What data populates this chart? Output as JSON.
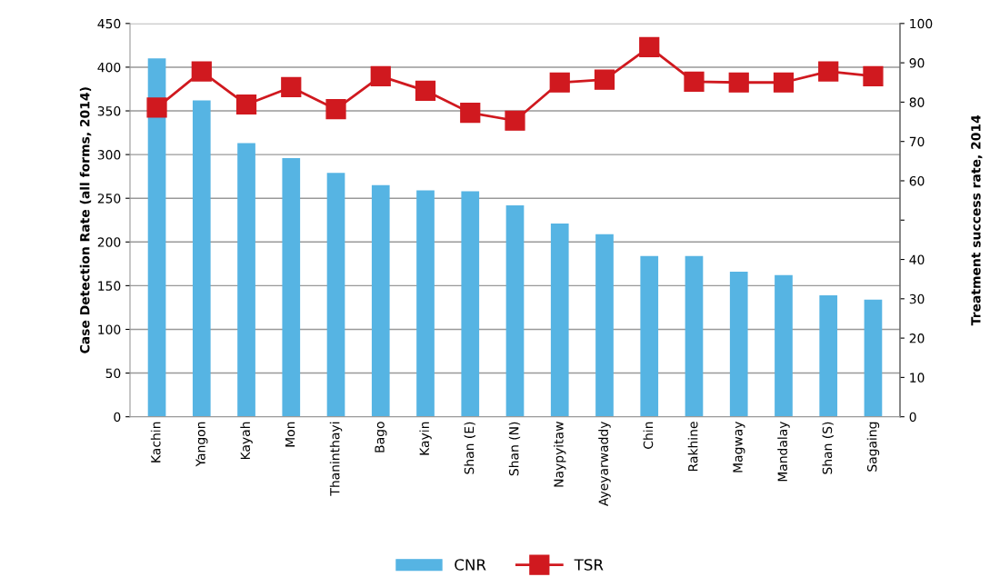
{
  "chart_data": {
    "type": "bar",
    "ylabel": "Case Detection Rate (all forms, 2014)",
    "y2label": "Treatment success rate, 2014",
    "categories": [
      "Kachin",
      "Yangon",
      "Kayah",
      "Mon",
      "Thaninthayi",
      "Bago",
      "Kayin",
      "Shan (E)",
      "Shan (N)",
      "Naypyitaw",
      "Ayeyarwaddy",
      "Chin",
      "Rakhine",
      "Magway",
      "Mandalay",
      "Shan (S)",
      "Sagaing"
    ],
    "series": [
      {
        "name": "CNR",
        "color": "#56b4e3",
        "values": [
          410,
          362,
          313,
          296,
          279,
          265,
          259,
          258,
          242,
          221,
          209,
          184,
          184,
          166,
          162,
          139,
          134
        ]
      },
      {
        "name": "TSR",
        "type": "line",
        "axis": "y2",
        "color": "#d0191f",
        "marker": "square",
        "values": [
          78.6,
          87.8,
          79.4,
          83.8,
          78.2,
          86.6,
          82.9,
          77.3,
          75.3,
          85.0,
          85.7,
          94.0,
          85.2,
          85.0,
          85.0,
          87.8,
          86.6
        ]
      }
    ],
    "ylim": [
      0,
      450
    ],
    "yticks": [
      0,
      50,
      100,
      150,
      200,
      250,
      300,
      350,
      400,
      450
    ],
    "y2lim": [
      0,
      100
    ],
    "y2ticks": [
      0,
      10,
      20,
      30,
      40,
      {
        "value": 50,
        "label": null
      },
      60,
      70,
      80,
      90,
      100
    ],
    "grid": "y",
    "legend": "bottom"
  }
}
